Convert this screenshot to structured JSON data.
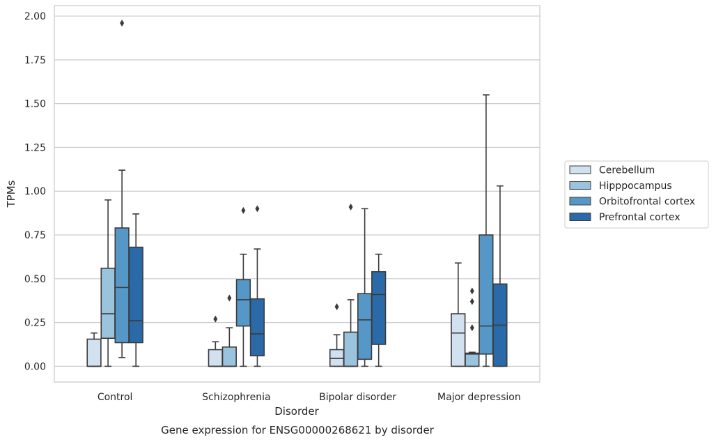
{
  "chart_data": {
    "type": "box",
    "title": "",
    "caption": "Gene expression for ENSG00000268621 by disorder",
    "xlabel": "Disorder",
    "ylabel": "TPMs",
    "ylim": [
      -0.09,
      2.06
    ],
    "yticks": [
      0.0,
      0.25,
      0.5,
      0.75,
      1.0,
      1.25,
      1.5,
      1.75,
      2.0
    ],
    "ytick_labels": [
      "0.00",
      "0.25",
      "0.50",
      "0.75",
      "1.00",
      "1.25",
      "1.50",
      "1.75",
      "2.00"
    ],
    "grid": true,
    "legend_position": "right",
    "categories": [
      "Control",
      "Schizophrenia",
      "Bipolar disorder",
      "Major depression"
    ],
    "series": [
      {
        "name": "Cerebellum",
        "color": "#d1e1f0",
        "boxes": [
          {
            "whislo": 0.0,
            "q1": 0.0,
            "med": 0.0,
            "q3": 0.155,
            "whishi": 0.19,
            "fliers": []
          },
          {
            "whislo": 0.0,
            "q1": 0.0,
            "med": 0.0,
            "q3": 0.095,
            "whishi": 0.14,
            "fliers": [
              0.27
            ]
          },
          {
            "whislo": 0.0,
            "q1": 0.0,
            "med": 0.045,
            "q3": 0.095,
            "whishi": 0.18,
            "fliers": [
              0.34
            ]
          },
          {
            "whislo": 0.0,
            "q1": 0.0,
            "med": 0.19,
            "q3": 0.3,
            "whishi": 0.59,
            "fliers": []
          }
        ]
      },
      {
        "name": "Hipppocampus",
        "color": "#9ac3de",
        "boxes": [
          {
            "whislo": 0.0,
            "q1": 0.16,
            "med": 0.3,
            "q3": 0.56,
            "whishi": 0.95,
            "fliers": []
          },
          {
            "whislo": 0.0,
            "q1": 0.0,
            "med": 0.0,
            "q3": 0.11,
            "whishi": 0.22,
            "fliers": [
              0.39
            ]
          },
          {
            "whislo": 0.0,
            "q1": 0.0,
            "med": 0.0,
            "q3": 0.195,
            "whishi": 0.38,
            "fliers": [
              0.91
            ]
          },
          {
            "whislo": 0.0,
            "q1": 0.0,
            "med": 0.07,
            "q3": 0.075,
            "whishi": 0.08,
            "fliers": [
              0.22,
              0.37,
              0.43
            ]
          }
        ]
      },
      {
        "name": "Orbitofrontal cortex",
        "color": "#5598c8",
        "boxes": [
          {
            "whislo": 0.05,
            "q1": 0.135,
            "med": 0.45,
            "q3": 0.79,
            "whishi": 1.12,
            "fliers": [
              1.96
            ]
          },
          {
            "whislo": 0.0,
            "q1": 0.23,
            "med": 0.38,
            "q3": 0.495,
            "whishi": 0.64,
            "fliers": [
              0.89
            ]
          },
          {
            "whislo": 0.0,
            "q1": 0.04,
            "med": 0.265,
            "q3": 0.415,
            "whishi": 0.9,
            "fliers": []
          },
          {
            "whislo": 0.0,
            "q1": 0.07,
            "med": 0.23,
            "q3": 0.75,
            "whishi": 1.55,
            "fliers": []
          }
        ]
      },
      {
        "name": "Prefrontal cortex",
        "color": "#2b6aa8",
        "boxes": [
          {
            "whislo": 0.0,
            "q1": 0.135,
            "med": 0.26,
            "q3": 0.68,
            "whishi": 0.87,
            "fliers": []
          },
          {
            "whislo": 0.0,
            "q1": 0.06,
            "med": 0.185,
            "q3": 0.385,
            "whishi": 0.67,
            "fliers": [
              0.9
            ]
          },
          {
            "whislo": 0.0,
            "q1": 0.125,
            "med": 0.41,
            "q3": 0.54,
            "whishi": 0.64,
            "fliers": []
          },
          {
            "whislo": 0.0,
            "q1": 0.0,
            "med": 0.235,
            "q3": 0.47,
            "whishi": 1.03,
            "fliers": []
          }
        ]
      }
    ]
  }
}
